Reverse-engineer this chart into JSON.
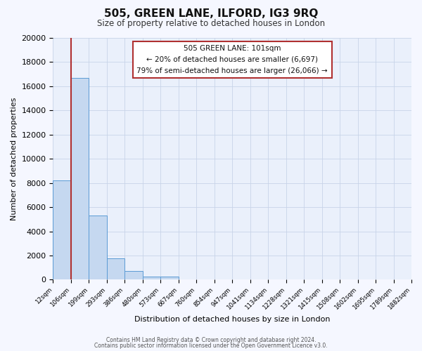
{
  "title": "505, GREEN LANE, ILFORD, IG3 9RQ",
  "subtitle": "Size of property relative to detached houses in London",
  "xlabel": "Distribution of detached houses by size in London",
  "ylabel": "Number of detached properties",
  "bar_color": "#c5d8f0",
  "bar_edge_color": "#5b9bd5",
  "background_color": "#eaf0fb",
  "grid_color": "#c8d4e8",
  "annotation_line_color": "#b03030",
  "bin_labels": [
    "12sqm",
    "106sqm",
    "199sqm",
    "293sqm",
    "386sqm",
    "480sqm",
    "573sqm",
    "667sqm",
    "760sqm",
    "854sqm",
    "947sqm",
    "1041sqm",
    "1134sqm",
    "1228sqm",
    "1321sqm",
    "1415sqm",
    "1508sqm",
    "1602sqm",
    "1695sqm",
    "1789sqm",
    "1882sqm"
  ],
  "bar_heights": [
    8200,
    16700,
    5300,
    1750,
    750,
    250,
    250,
    0,
    0,
    0,
    0,
    0,
    0,
    0,
    0,
    0,
    0,
    0,
    0,
    0
  ],
  "ylim": [
    0,
    20000
  ],
  "yticks": [
    0,
    2000,
    4000,
    6000,
    8000,
    10000,
    12000,
    14000,
    16000,
    18000,
    20000
  ],
  "annotation_title": "505 GREEN LANE: 101sqm",
  "annotation_line1": "← 20% of detached houses are smaller (6,697)",
  "annotation_line2": "79% of semi-detached houses are larger (26,066) →",
  "footer_line1": "Contains HM Land Registry data © Crown copyright and database right 2024.",
  "footer_line2": "Contains public sector information licensed under the Open Government Licence v3.0."
}
